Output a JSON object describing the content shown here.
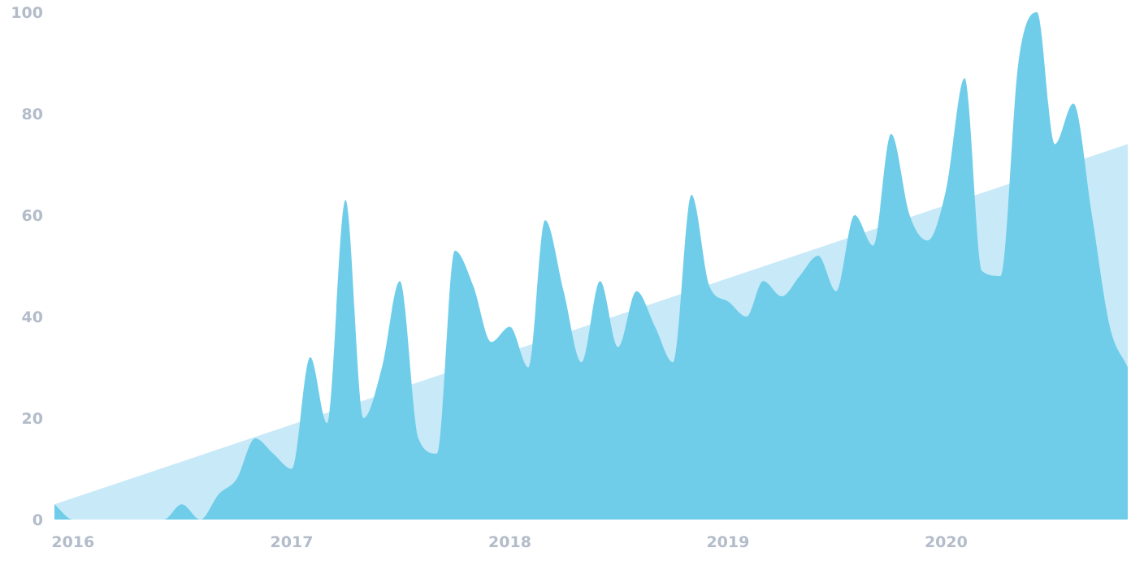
{
  "chart_data": {
    "type": "area",
    "title": "",
    "xlabel": "",
    "ylabel": "",
    "ylim": [
      0,
      100
    ],
    "xlim": [
      "2015-12-01",
      "2020-10-31"
    ],
    "grid": false,
    "legend": "none",
    "y_ticks": [
      "0",
      "20",
      "40",
      "60",
      "80",
      "100"
    ],
    "x_ticks": [
      {
        "date": "2016-01-01",
        "label": "2016"
      },
      {
        "date": "2017-01-01",
        "label": "2017"
      },
      {
        "date": "2018-01-01",
        "label": "2018"
      },
      {
        "date": "2019-01-01",
        "label": "2019"
      },
      {
        "date": "2020-01-01",
        "label": "2020"
      }
    ],
    "series": [
      {
        "kind": "trend",
        "color": "#c8e9f7",
        "x": [
          "2015-12-01",
          "2020-10-31"
        ],
        "y": [
          3,
          74
        ]
      },
      {
        "kind": "monthly",
        "color": "#6fcde9",
        "x": [
          "2015-12-01",
          "2016-01-01",
          "2016-02-01",
          "2016-03-01",
          "2016-04-01",
          "2016-05-01",
          "2016-06-01",
          "2016-07-01",
          "2016-08-01",
          "2016-09-01",
          "2016-10-01",
          "2016-11-01",
          "2016-12-01",
          "2017-01-01",
          "2017-02-01",
          "2017-03-01",
          "2017-04-01",
          "2017-05-01",
          "2017-06-01",
          "2017-07-01",
          "2017-08-01",
          "2017-09-01",
          "2017-10-01",
          "2017-11-01",
          "2017-12-01",
          "2018-01-01",
          "2018-02-01",
          "2018-03-01",
          "2018-04-01",
          "2018-05-01",
          "2018-06-01",
          "2018-07-01",
          "2018-08-01",
          "2018-09-01",
          "2018-10-01",
          "2018-11-01",
          "2018-12-01",
          "2019-01-01",
          "2019-02-01",
          "2019-03-01",
          "2019-04-01",
          "2019-05-01",
          "2019-06-01",
          "2019-07-01",
          "2019-08-01",
          "2019-09-01",
          "2019-10-01",
          "2019-11-01",
          "2019-12-01",
          "2020-01-01",
          "2020-02-01",
          "2020-03-01",
          "2020-04-01",
          "2020-05-01",
          "2020-06-01",
          "2020-07-01",
          "2020-08-01",
          "2020-09-01",
          "2020-10-01",
          "2020-10-31"
        ],
        "y": [
          3,
          0,
          0,
          0,
          0,
          0,
          0,
          3,
          0,
          5,
          8,
          16,
          13,
          10,
          32,
          19,
          63,
          20,
          30,
          47,
          16,
          13,
          53,
          46,
          35,
          38,
          30,
          59,
          45,
          31,
          47,
          34,
          45,
          38,
          31,
          64,
          46,
          43,
          40,
          47,
          44,
          48,
          52,
          45,
          60,
          54,
          76,
          60,
          55,
          65,
          87,
          49,
          48,
          90,
          100,
          74,
          82,
          60,
          38,
          30
        ]
      }
    ]
  }
}
